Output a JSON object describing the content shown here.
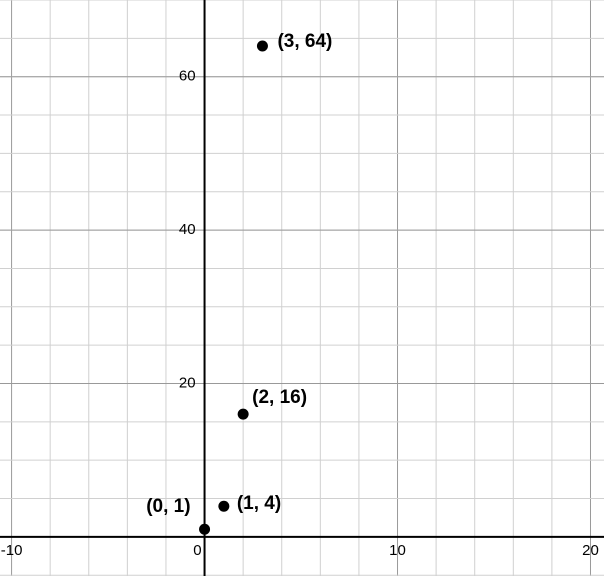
{
  "chart_data": {
    "type": "scatter",
    "x": [
      0,
      1,
      2,
      3
    ],
    "values": [
      1,
      4,
      16,
      64
    ],
    "value_labels": [
      "(0, 1)",
      "(1, 4)",
      "(2, 16)",
      "(3, 64)"
    ],
    "color": "#000000",
    "xlim": [
      -10.6,
      20.7
    ],
    "ylim": [
      -5.1,
      70
    ],
    "xticks": [
      -10,
      0,
      10,
      20
    ],
    "yticks": [
      20,
      40,
      60
    ],
    "xgrid": [
      -10,
      -8,
      -6,
      -4,
      -2,
      0,
      2,
      4,
      6,
      8,
      10,
      12,
      14,
      16,
      18,
      20
    ],
    "ygrid": [
      -5,
      0,
      5,
      10,
      15,
      20,
      25,
      30,
      35,
      40,
      45,
      50,
      55,
      60,
      65,
      70
    ],
    "grid": true
  }
}
